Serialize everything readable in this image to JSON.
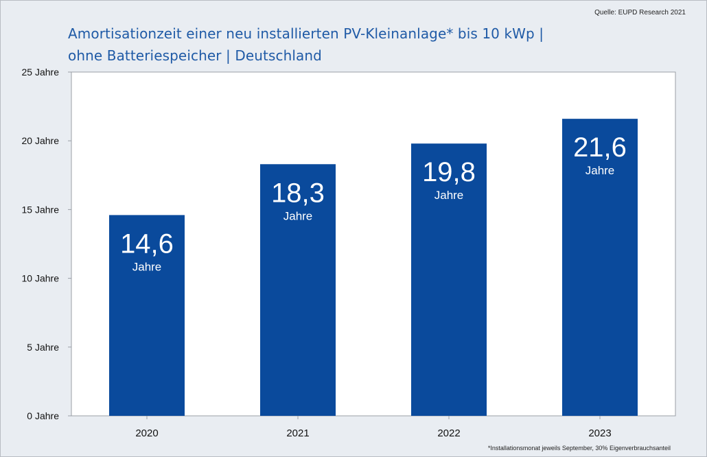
{
  "source": "Quelle: EUPD Research 2021",
  "title_lines": [
    "Amortisationzeit einer neu installierten PV-Kleinanlage* bis 10 kWp |",
    "ohne Batteriespeicher | Deutschland"
  ],
  "footnote": "*Installationsmonat jeweils September, 30% Eigenverbrauchsanteil",
  "chart_data": {
    "type": "bar",
    "categories": [
      "2020",
      "2021",
      "2022",
      "2023"
    ],
    "values": [
      14.6,
      18.3,
      19.8,
      21.6
    ],
    "value_labels": [
      "14,6",
      "18,3",
      "19,8",
      "21,6"
    ],
    "value_unit_label": "Jahre",
    "y_ticks": [
      0,
      5,
      10,
      15,
      20,
      25
    ],
    "y_tick_labels": [
      "0 Jahre",
      "5 Jahre",
      "10 Jahre",
      "15 Jahre",
      "20 Jahre",
      "25 Jahre"
    ],
    "ylim": [
      0,
      25
    ],
    "grid": false,
    "bar_color": "#0a4a9c",
    "plot_background": "#ffffff",
    "page_background": "#e9edf2"
  }
}
